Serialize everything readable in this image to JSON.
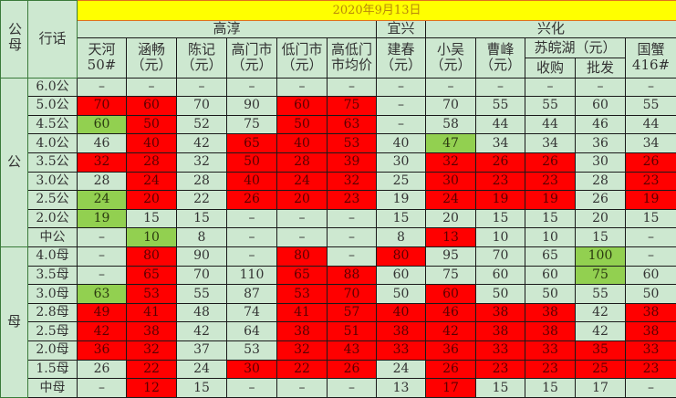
{
  "header": {
    "gender_col": "公母",
    "slang_col": "行话",
    "date": "2020年9月13日",
    "regions": [
      "高淳",
      "宜兴",
      "兴化"
    ],
    "columns": [
      {
        "l1": "天河",
        "l2": "50#"
      },
      {
        "l1": "涵畅",
        "l2": "（元）"
      },
      {
        "l1": "陈记",
        "l2": "（元）"
      },
      {
        "l1": "高门市",
        "l2": "（元）"
      },
      {
        "l1": "低门市",
        "l2": "（元）"
      },
      {
        "l1": "高低门",
        "l2": "市均价"
      },
      {
        "l1": "建春",
        "l2": "（元）"
      },
      {
        "l1": "小吴",
        "l2": "（元）"
      },
      {
        "l1": "曹峰",
        "l2": "（元）"
      },
      {
        "l1": "苏皖湖（元）"
      },
      {
        "l1": "国蟹",
        "l2": "416#"
      }
    ],
    "suwan_sub": [
      "收购",
      "批发"
    ]
  },
  "groups": [
    {
      "label": "公",
      "rows": [
        {
          "name": "6.0公",
          "values": [
            "–",
            "–",
            "–",
            "–",
            "–",
            "–",
            "–",
            "–",
            "–",
            "–",
            "–",
            "–"
          ],
          "colors": "............"
        },
        {
          "name": "5.0公",
          "values": [
            "70",
            "60",
            "70",
            "90",
            "60",
            "75",
            "–",
            "70",
            "55",
            "55",
            "60",
            "55"
          ],
          "colors": "rr..rr......"
        },
        {
          "name": "4.5公",
          "values": [
            "60",
            "50",
            "52",
            "75",
            "50",
            "63",
            "–",
            "58",
            "44",
            "44",
            "46",
            "44"
          ],
          "colors": "gr..rr......"
        },
        {
          "name": "4.0公",
          "values": [
            "46",
            "40",
            "42",
            "65",
            "40",
            "53",
            "40",
            "47",
            "34",
            "34",
            "36",
            "34"
          ],
          "colors": ".r.rrr.g...."
        },
        {
          "name": "3.5公",
          "values": [
            "32",
            "28",
            "32",
            "50",
            "28",
            "39",
            "30",
            "32",
            "26",
            "26",
            "30",
            "26"
          ],
          "colors": "rr.rrr.rrr.r"
        },
        {
          "name": "3.0公",
          "values": [
            "28",
            "24",
            "28",
            "40",
            "24",
            "32",
            "25",
            "30",
            "23",
            "23",
            "28",
            "23"
          ],
          "colors": ".r.rrr.rrr.r"
        },
        {
          "name": "2.5公",
          "values": [
            "24",
            "20",
            "22",
            "26",
            "20",
            "23",
            "19",
            "24",
            "19",
            "19",
            "26",
            "19"
          ],
          "colors": "gr.rrr.rrr.r"
        },
        {
          "name": "2.0公",
          "values": [
            "19",
            "15",
            "15",
            "–",
            "–",
            "–",
            "15",
            "20",
            "15",
            "15",
            "20",
            "15"
          ],
          "colors": "g..........."
        },
        {
          "name": "中公",
          "values": [
            "–",
            "10",
            "8",
            "–",
            "–",
            "–",
            "8",
            "13",
            "10",
            "10",
            "15",
            "–"
          ],
          "colors": ".g.....r...."
        }
      ]
    },
    {
      "label": "母",
      "rows": [
        {
          "name": "4.0母",
          "values": [
            "–",
            "80",
            "90",
            "–",
            "80",
            "–",
            "80",
            "95",
            "70",
            "65",
            "100",
            "–"
          ],
          "colors": ".r..r.r...g."
        },
        {
          "name": "3.5母",
          "values": [
            "–",
            "65",
            "70",
            "110",
            "65",
            "88",
            "60",
            "75",
            "60",
            "60",
            "75",
            "60"
          ],
          "colors": ".r..rr....g."
        },
        {
          "name": "3.0母",
          "values": [
            "63",
            "53",
            "55",
            "87",
            "53",
            "70",
            "50",
            "60",
            "50",
            "50",
            "55",
            "50"
          ],
          "colors": "gr..rr.r...."
        },
        {
          "name": "2.8母",
          "values": [
            "49",
            "41",
            "48",
            "74",
            "41",
            "57",
            "40",
            "46",
            "38",
            "38",
            "42",
            "38"
          ],
          "colors": "rr..rrrrrr.r"
        },
        {
          "name": "2.5母",
          "values": [
            "42",
            "38",
            "42",
            "64",
            "38",
            "51",
            "38",
            "42",
            "38",
            "38",
            "42",
            "38"
          ],
          "colors": "rr..rrrrrr.r"
        },
        {
          "name": "2.0母",
          "values": [
            "36",
            "32",
            "37",
            "53",
            "32",
            "43",
            "33",
            "36",
            "33",
            "33",
            "35",
            "33"
          ],
          "colors": "rr..rrrrrrrr"
        },
        {
          "name": "1.5母",
          "values": [
            "26",
            "22",
            "24",
            "30",
            "22",
            "26",
            "24",
            "26",
            "23",
            "23",
            "25",
            "23"
          ],
          "colors": ".r.rrr.rrrrr"
        },
        {
          "name": "中母",
          "values": [
            "–",
            "12",
            "15",
            "–",
            "–",
            "–",
            "13",
            "17",
            "15",
            "15",
            "17",
            "–"
          ],
          "colors": ".r.....r...."
        }
      ]
    }
  ],
  "colors": {
    "red": "#ff0000",
    "green": "#92d050",
    "base": "#cde8d0",
    "date_bg": "#ffff00"
  }
}
